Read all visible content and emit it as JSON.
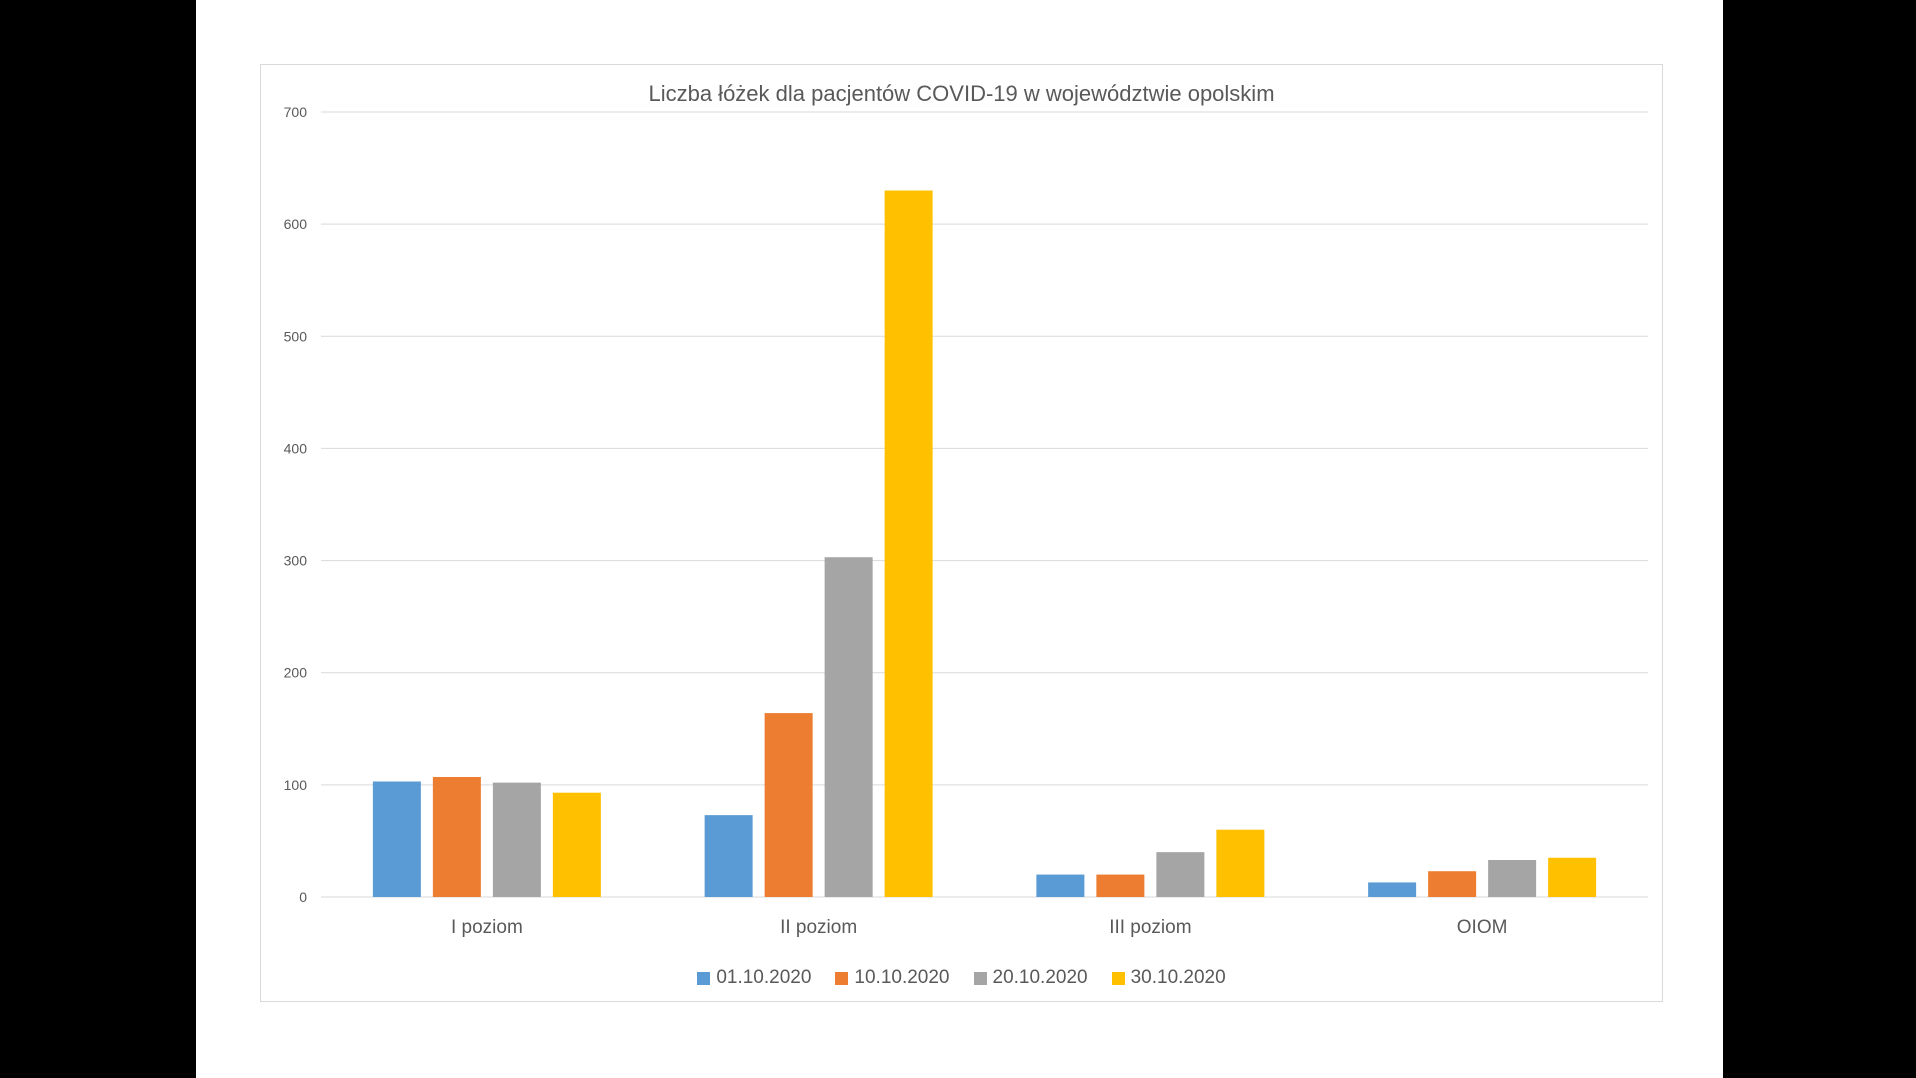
{
  "chart_data": {
    "type": "bar",
    "title": "Liczba łóżek dla pacjentów COVID-19 w województwie opolskim",
    "categories": [
      "I poziom",
      "II poziom",
      "III poziom",
      "OIOM"
    ],
    "series": [
      {
        "name": "01.10.2020",
        "color": "#5b9bd5",
        "values": [
          103,
          73,
          20,
          13
        ]
      },
      {
        "name": "10.10.2020",
        "color": "#ed7d31",
        "values": [
          107,
          164,
          20,
          23
        ]
      },
      {
        "name": "20.10.2020",
        "color": "#a5a5a5",
        "values": [
          102,
          303,
          40,
          33
        ]
      },
      {
        "name": "30.10.2020",
        "color": "#ffc000",
        "values": [
          93,
          630,
          60,
          35
        ]
      }
    ],
    "ylim": [
      0,
      700
    ],
    "yticks": [
      "0",
      "100",
      "200",
      "300",
      "400",
      "500",
      "600",
      "700"
    ],
    "xlabel": "",
    "ylabel": "",
    "grid": true,
    "legend_position": "bottom"
  }
}
